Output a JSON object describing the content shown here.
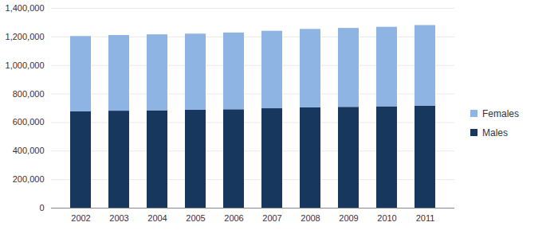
{
  "chart_data": {
    "type": "bar",
    "stacked": true,
    "grid": true,
    "legend": "right",
    "categories": [
      "2002",
      "2003",
      "2004",
      "2005",
      "2006",
      "2007",
      "2008",
      "2009",
      "2010",
      "2011"
    ],
    "series": [
      {
        "name": "Males",
        "color": "#17375e",
        "values": [
          675000,
          680000,
          683000,
          686000,
          690000,
          697000,
          703000,
          707000,
          711000,
          716000
        ]
      },
      {
        "name": "Females",
        "color": "#8db4e2",
        "values": [
          528000,
          530000,
          532000,
          534000,
          538000,
          543000,
          550000,
          553000,
          557000,
          564000
        ]
      }
    ],
    "ylim": [
      0,
      1400000
    ],
    "yticks": [
      0,
      {
        "value": 200000,
        "label": "200,000"
      },
      {
        "value": 400000,
        "label": "400,000"
      },
      {
        "value": 600000,
        "label": "600,000"
      },
      {
        "value": 800000,
        "label": "800,000"
      },
      {
        "value": 1000000,
        "label": "1,000,000"
      },
      {
        "value": 1200000,
        "label": "1,200,000"
      },
      {
        "value": 1400000,
        "label": "1,400,000"
      }
    ]
  }
}
